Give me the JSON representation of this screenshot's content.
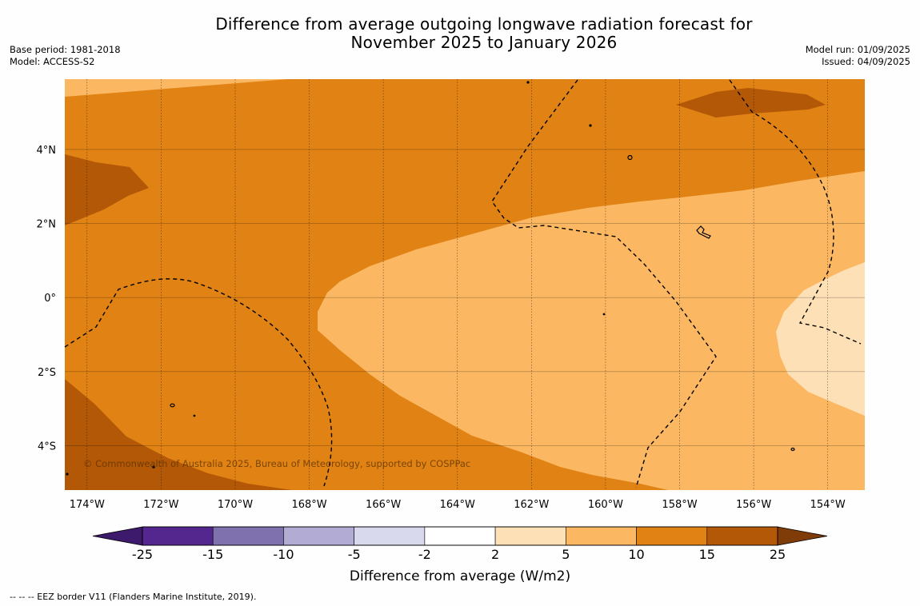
{
  "title": {
    "line1": "Difference from average outgoing longwave radiation forecast for",
    "line2": "November 2025 to January 2026"
  },
  "meta_left": {
    "base_period": "Base period: 1981-2018",
    "model": "Model: ACCESS-S2"
  },
  "meta_right": {
    "model_run": "Model run: 01/09/2025",
    "issued": "Issued: 04/09/2025"
  },
  "map": {
    "lon_range": [
      -174.6,
      -153.0
    ],
    "lat_range": [
      -5.2,
      5.9
    ],
    "lon_ticks": [
      {
        "value": -174,
        "label": "174°W"
      },
      {
        "value": -172,
        "label": "172°W"
      },
      {
        "value": -170,
        "label": "170°W"
      },
      {
        "value": -168,
        "label": "168°W"
      },
      {
        "value": -166,
        "label": "166°W"
      },
      {
        "value": -164,
        "label": "164°W"
      },
      {
        "value": -162,
        "label": "162°W"
      },
      {
        "value": -160,
        "label": "160°W"
      },
      {
        "value": -158,
        "label": "158°W"
      },
      {
        "value": -156,
        "label": "156°W"
      },
      {
        "value": -154,
        "label": "154°W"
      }
    ],
    "lat_ticks": [
      {
        "value": 4,
        "label": "4°N"
      },
      {
        "value": 2,
        "label": "2°N"
      },
      {
        "value": 0,
        "label": "0°"
      },
      {
        "value": -2,
        "label": "2°S"
      },
      {
        "value": -4,
        "label": "4°S"
      }
    ],
    "grid": true,
    "copyright": "© Commonwealth of Australia 2025, Bureau of Meteorology, supported by COSPPac"
  },
  "colorbar": {
    "label": "Difference from average (W/m2)",
    "tick_labels": [
      "-25",
      "-15",
      "-10",
      "-5",
      "-2",
      "2",
      "5",
      "10",
      "15",
      "25"
    ],
    "colors": [
      "#3d1a6b",
      "#54278f",
      "#7f71ae",
      "#b2abd4",
      "#d8d9ec",
      "#ffffff",
      "#fee0b6",
      "#fbb761",
      "#e08214",
      "#b35806",
      "#7f3b08"
    ],
    "extend": "both"
  },
  "footer": "--  --  -- EEZ border V11 (Flanders Marine Institute, 2019)."
}
